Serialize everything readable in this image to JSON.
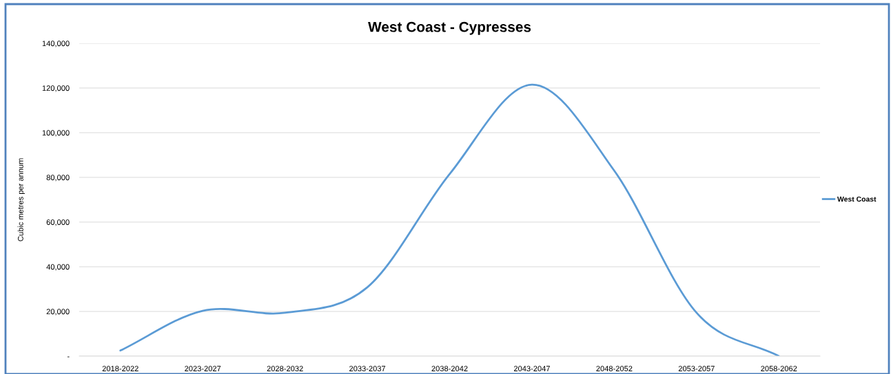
{
  "chart_data": {
    "type": "line",
    "title": "West Coast - Cypresses",
    "ylabel": "Cubic metres per annum",
    "categories": [
      "2018-2022",
      "2023-2027",
      "2028-2032",
      "2033-2037",
      "2038-2042",
      "2043-2047",
      "2048-2052",
      "2053-2057",
      "2058-2062"
    ],
    "series": [
      {
        "name": "West Coast",
        "color": "#5b9bd5",
        "values": [
          2500,
          20300,
          19400,
          30800,
          81500,
          121500,
          83000,
          19400,
          0
        ]
      }
    ],
    "ylim": [
      0,
      140000
    ],
    "yticks": [
      {
        "value": 0,
        "label": "-"
      },
      {
        "value": 20000,
        "label": "20,000"
      },
      {
        "value": 40000,
        "label": "40,000"
      },
      {
        "value": 60000,
        "label": "60,000"
      },
      {
        "value": 80000,
        "label": "80,000"
      },
      {
        "value": 100000,
        "label": "100,000"
      },
      {
        "value": 120000,
        "label": "120,000"
      },
      {
        "value": 140000,
        "label": "140,000"
      }
    ],
    "grid": "y",
    "legend": "right",
    "marker": "none",
    "line_style": "solid"
  }
}
